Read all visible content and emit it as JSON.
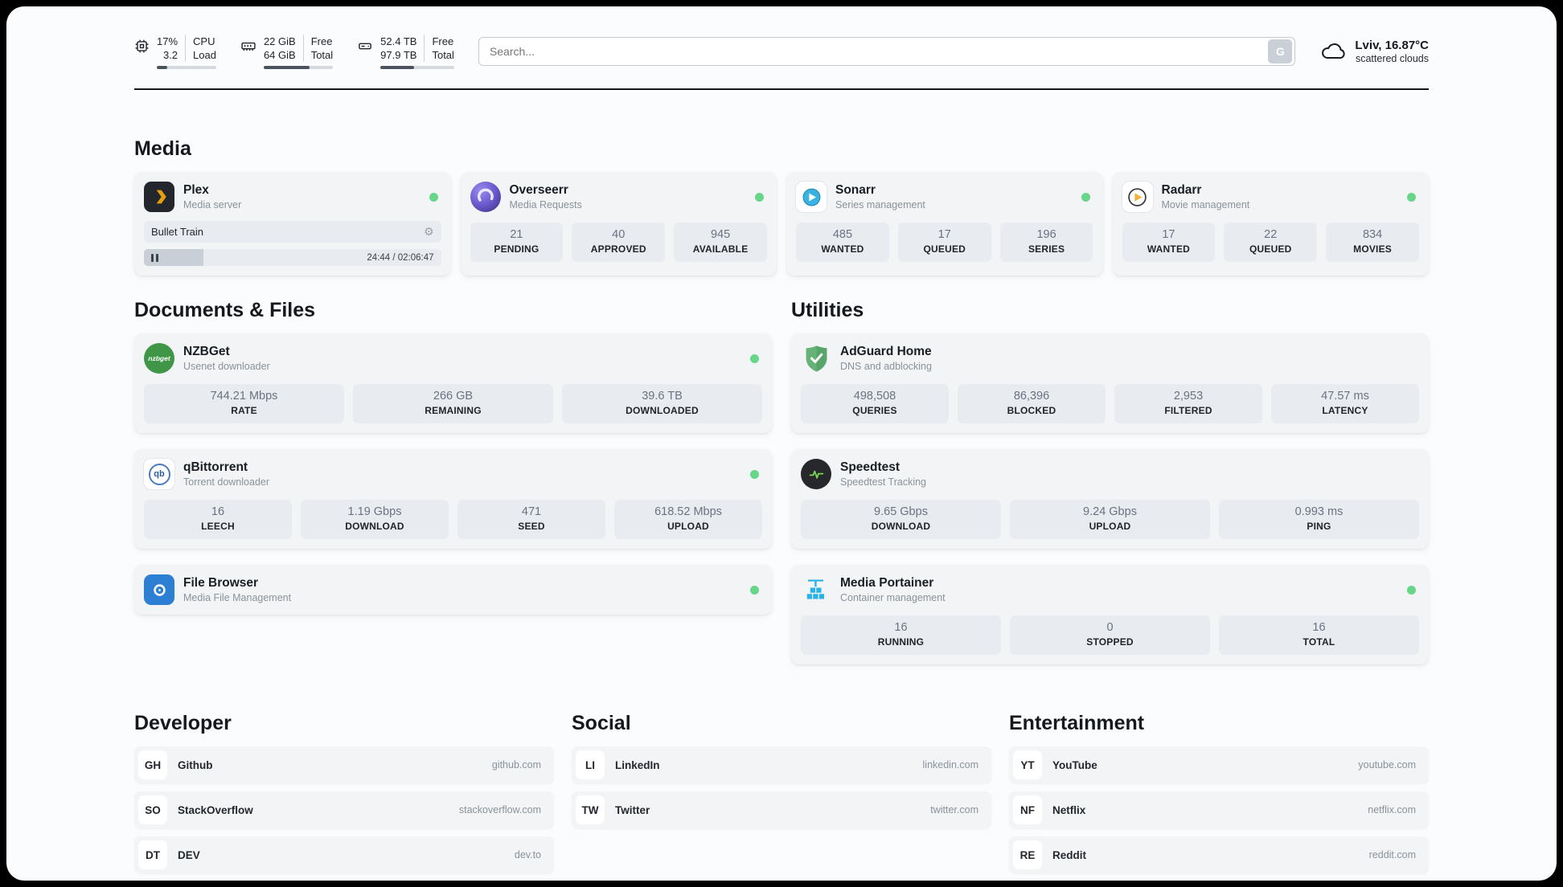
{
  "header": {
    "cpu": {
      "value1": "17%",
      "value2": "3.2",
      "label1": "CPU",
      "label2": "Load",
      "progress_pct": 17
    },
    "ram": {
      "value1": "22 GiB",
      "value2": "64 GiB",
      "label1": "Free",
      "label2": "Total",
      "progress_pct": 66
    },
    "disk": {
      "value1": "52.4 TB",
      "value2": "97.9 TB",
      "label1": "Free",
      "label2": "Total",
      "progress_pct": 46
    },
    "search": {
      "placeholder": "Search...",
      "button_label": "G"
    },
    "weather": {
      "location": "Lviv, 16.87°C",
      "condition": "scattered clouds"
    }
  },
  "sections": {
    "media": "Media",
    "documents": "Documents & Files",
    "utilities": "Utilities",
    "developer": "Developer",
    "social": "Social",
    "entertainment": "Entertainment"
  },
  "icons": {
    "gear": "⚙"
  },
  "apps": {
    "plex": {
      "name": "Plex",
      "subtitle": "Media server",
      "now_playing": "Bullet Train",
      "time": "24:44 / 02:06:47",
      "progress_pct": 20
    },
    "overseerr": {
      "name": "Overseerr",
      "subtitle": "Media Requests",
      "stats": [
        {
          "value": "21",
          "label": "PENDING"
        },
        {
          "value": "40",
          "label": "APPROVED"
        },
        {
          "value": "945",
          "label": "AVAILABLE"
        }
      ]
    },
    "sonarr": {
      "name": "Sonarr",
      "subtitle": "Series management",
      "stats": [
        {
          "value": "485",
          "label": "WANTED"
        },
        {
          "value": "17",
          "label": "QUEUED"
        },
        {
          "value": "196",
          "label": "SERIES"
        }
      ]
    },
    "radarr": {
      "name": "Radarr",
      "subtitle": "Movie management",
      "stats": [
        {
          "value": "17",
          "label": "WANTED"
        },
        {
          "value": "22",
          "label": "QUEUED"
        },
        {
          "value": "834",
          "label": "MOVIES"
        }
      ]
    },
    "nzbget": {
      "name": "NZBGet",
      "subtitle": "Usenet downloader",
      "icon_text": "nzbget",
      "stats": [
        {
          "value": "744.21 Mbps",
          "label": "RATE"
        },
        {
          "value": "266 GB",
          "label": "REMAINING"
        },
        {
          "value": "39.6 TB",
          "label": "DOWNLOADED"
        }
      ]
    },
    "qbittorrent": {
      "name": "qBittorrent",
      "subtitle": "Torrent downloader",
      "icon_text": "qb",
      "stats": [
        {
          "value": "16",
          "label": "LEECH"
        },
        {
          "value": "1.19 Gbps",
          "label": "DOWNLOAD"
        },
        {
          "value": "471",
          "label": "SEED"
        },
        {
          "value": "618.52 Mbps",
          "label": "UPLOAD"
        }
      ]
    },
    "filebrowser": {
      "name": "File Browser",
      "subtitle": "Media File Management"
    },
    "adguard": {
      "name": "AdGuard Home",
      "subtitle": "DNS and adblocking",
      "stats": [
        {
          "value": "498,508",
          "label": "QUERIES"
        },
        {
          "value": "86,396",
          "label": "BLOCKED"
        },
        {
          "value": "2,953",
          "label": "FILTERED"
        },
        {
          "value": "47.57 ms",
          "label": "LATENCY"
        }
      ]
    },
    "speedtest": {
      "name": "Speedtest",
      "subtitle": "Speedtest Tracking",
      "stats": [
        {
          "value": "9.65 Gbps",
          "label": "DOWNLOAD"
        },
        {
          "value": "9.24 Gbps",
          "label": "UPLOAD"
        },
        {
          "value": "0.993 ms",
          "label": "PING"
        }
      ]
    },
    "portainer": {
      "name": "Media Portainer",
      "subtitle": "Container management",
      "stats": [
        {
          "value": "16",
          "label": "RUNNING"
        },
        {
          "value": "0",
          "label": "STOPPED"
        },
        {
          "value": "16",
          "label": "TOTAL"
        }
      ]
    }
  },
  "bookmarks": {
    "developer": [
      {
        "badge": "GH",
        "name": "Github",
        "url": "github.com"
      },
      {
        "badge": "SO",
        "name": "StackOverflow",
        "url": "stackoverflow.com"
      },
      {
        "badge": "DT",
        "name": "DEV",
        "url": "dev.to"
      }
    ],
    "social": [
      {
        "badge": "LI",
        "name": "LinkedIn",
        "url": "linkedin.com"
      },
      {
        "badge": "TW",
        "name": "Twitter",
        "url": "twitter.com"
      }
    ],
    "entertainment": [
      {
        "badge": "YT",
        "name": "YouTube",
        "url": "youtube.com"
      },
      {
        "badge": "NF",
        "name": "Netflix",
        "url": "netflix.com"
      },
      {
        "badge": "RE",
        "name": "Reddit",
        "url": "reddit.com"
      }
    ]
  },
  "colors": {
    "status_online": "#67d58a",
    "plex_accent": "#e5a00d"
  }
}
